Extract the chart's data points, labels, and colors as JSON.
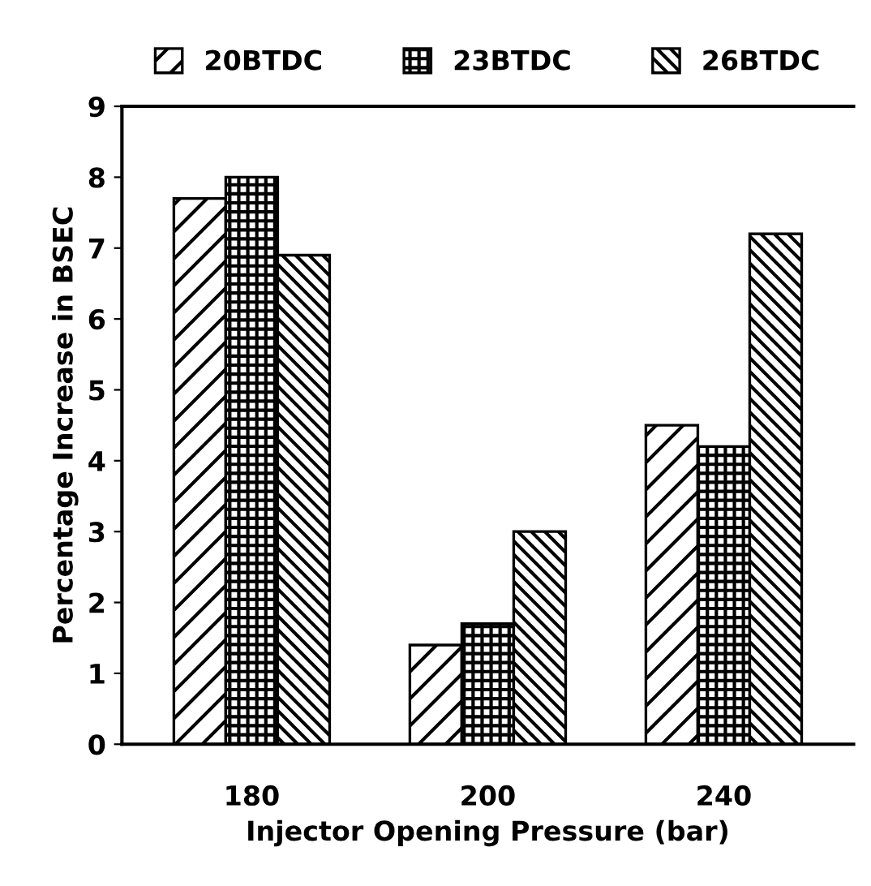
{
  "chart_data": {
    "type": "bar",
    "xlabel": "Injector Opening Pressure (bar)",
    "ylabel": "Percentage Increase in BSEC",
    "categories": [
      "180",
      "200",
      "240"
    ],
    "series": [
      {
        "name": "20BTDC",
        "color": "#000000",
        "values": [
          7.7,
          1.4,
          4.5
        ]
      },
      {
        "name": "23BTDC",
        "color": "#000000",
        "values": [
          8.0,
          1.7,
          4.2
        ]
      },
      {
        "name": "26BTDC",
        "color": "#000000",
        "values": [
          6.9,
          3.0,
          7.2
        ]
      }
    ],
    "ylim": [
      0,
      9
    ],
    "yticks": [
      0,
      1,
      2,
      3,
      4,
      5,
      6,
      7,
      8,
      9
    ],
    "grid": false,
    "legend": "top"
  }
}
